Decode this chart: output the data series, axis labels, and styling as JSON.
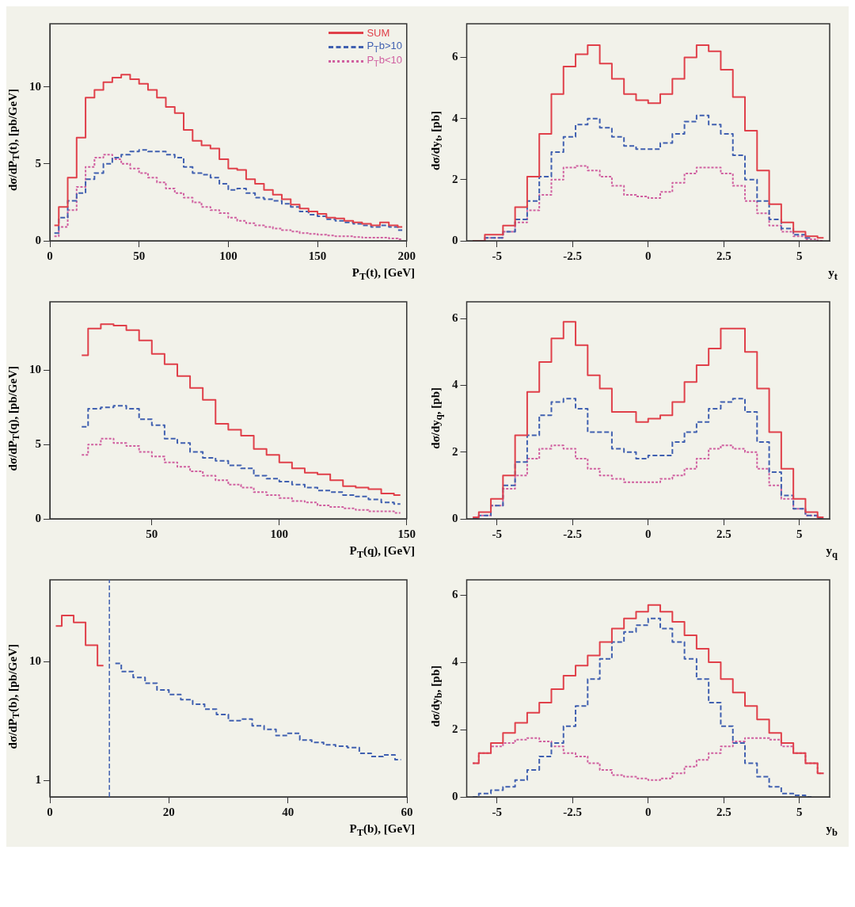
{
  "chart_data": [
    {
      "type": "step",
      "xlabel": "P$_{T}$(t), [GeV]",
      "ylabel": "dσ/dP$_{T}$(t), [pb/GeV]",
      "xlim": [
        0,
        200
      ],
      "ylim": [
        0,
        14.1
      ],
      "xticks": [
        0,
        50,
        100,
        150,
        200
      ],
      "yticks": [
        0,
        5,
        10
      ],
      "grid": false,
      "legend": "top right",
      "x": [
        2.5,
        7.5,
        12.5,
        17.5,
        22.5,
        27.5,
        32.5,
        37.5,
        42.5,
        47.5,
        52.5,
        57.5,
        62.5,
        67.5,
        72.5,
        77.5,
        82.5,
        87.5,
        92.5,
        97.5,
        102.5,
        107.5,
        112.5,
        117.5,
        122.5,
        127.5,
        132.5,
        137.5,
        142.5,
        147.5,
        152.5,
        157.5,
        162.5,
        167.5,
        172.5,
        177.5,
        182.5,
        187.5,
        192.5,
        197.5
      ],
      "series": [
        {
          "name": "SUM",
          "color": "#e0404a",
          "line_style": "solid",
          "values": [
            1.0,
            2.2,
            4.1,
            6.7,
            9.3,
            9.8,
            10.3,
            10.6,
            10.8,
            10.5,
            10.2,
            9.8,
            9.3,
            8.7,
            8.3,
            7.2,
            6.5,
            6.2,
            6.0,
            5.3,
            4.7,
            4.6,
            4.0,
            3.7,
            3.3,
            3.0,
            2.7,
            2.35,
            2.1,
            1.9,
            1.75,
            1.5,
            1.45,
            1.3,
            1.2,
            1.1,
            1.0,
            1.2,
            1.0,
            0.9
          ]
        },
        {
          "name": "P$_{T}$b>10",
          "color": "#4060b0",
          "line_style": "dashed",
          "values": [
            0.5,
            1.5,
            2.6,
            3.1,
            4.0,
            4.4,
            5.0,
            5.4,
            5.6,
            5.8,
            5.9,
            5.8,
            5.8,
            5.6,
            5.4,
            4.8,
            4.4,
            4.3,
            4.1,
            3.7,
            3.3,
            3.4,
            3.1,
            2.8,
            2.7,
            2.6,
            2.4,
            2.2,
            1.9,
            1.7,
            1.6,
            1.4,
            1.3,
            1.2,
            1.1,
            1.0,
            0.9,
            1.0,
            0.9,
            0.7
          ]
        },
        {
          "name": "P$_{T}$b<10",
          "color": "#d060a0",
          "line_style": "dotted",
          "values": [
            0.3,
            0.9,
            2.0,
            3.5,
            4.8,
            5.4,
            5.6,
            5.3,
            5.0,
            4.7,
            4.4,
            4.1,
            3.8,
            3.4,
            3.1,
            2.8,
            2.5,
            2.2,
            2.0,
            1.8,
            1.5,
            1.3,
            1.15,
            1.0,
            0.9,
            0.8,
            0.7,
            0.6,
            0.5,
            0.45,
            0.4,
            0.35,
            0.3,
            0.3,
            0.25,
            0.2,
            0.2,
            0.2,
            0.15,
            0.1
          ]
        }
      ]
    },
    {
      "type": "step",
      "xlabel": "y$_{t}$",
      "ylabel": "dσ/dy$_{t}$, [pb]",
      "xlim": [
        -6,
        6
      ],
      "ylim": [
        0,
        7.1
      ],
      "xticks": [
        -5,
        -2.5,
        0,
        2.5,
        5
      ],
      "yticks": [
        0,
        2,
        4,
        6
      ],
      "grid": false,
      "x": [
        -5.8,
        -5.0,
        -4.6,
        -4.2,
        -3.8,
        -3.4,
        -3.0,
        -2.6,
        -2.2,
        -1.8,
        -1.4,
        -1.0,
        -0.6,
        -0.2,
        0.2,
        0.6,
        1.0,
        1.4,
        1.8,
        2.2,
        2.6,
        3.0,
        3.4,
        3.8,
        4.2,
        4.6,
        5.0,
        5.4,
        5.8
      ],
      "series": [
        {
          "color": "#e0404a",
          "line_style": "solid",
          "values": [
            0,
            0.2,
            0.5,
            1.1,
            2.1,
            3.5,
            4.8,
            5.7,
            6.1,
            6.4,
            5.8,
            5.3,
            4.8,
            4.6,
            4.5,
            4.8,
            5.3,
            6.0,
            6.4,
            6.2,
            5.6,
            4.7,
            3.6,
            2.3,
            1.2,
            0.6,
            0.3,
            0.15,
            0.1
          ]
        },
        {
          "color": "#4060b0",
          "line_style": "dashed",
          "values": [
            0,
            0.1,
            0.3,
            0.7,
            1.3,
            2.1,
            2.9,
            3.4,
            3.8,
            4.0,
            3.7,
            3.4,
            3.1,
            3.0,
            3.0,
            3.2,
            3.5,
            3.9,
            4.1,
            3.8,
            3.5,
            2.8,
            2.0,
            1.3,
            0.7,
            0.4,
            0.2,
            0.1,
            null
          ]
        },
        {
          "color": "#d060a0",
          "line_style": "dotted",
          "values": [
            0,
            0.1,
            0.3,
            0.6,
            1.0,
            1.5,
            2.0,
            2.4,
            2.45,
            2.3,
            2.1,
            1.8,
            1.5,
            1.45,
            1.4,
            1.6,
            1.9,
            2.2,
            2.4,
            2.4,
            2.2,
            1.8,
            1.3,
            0.9,
            0.5,
            0.3,
            0.15,
            0.05,
            0
          ]
        }
      ]
    },
    {
      "type": "step",
      "xlabel": "P$_{T}$(q), [GeV]",
      "ylabel": "dσ/dP$_{T}$(q), [pb/GeV]",
      "xlim": [
        10,
        150
      ],
      "ylim": [
        0,
        14.6
      ],
      "xticks": [
        50,
        100,
        150
      ],
      "yticks": [
        0,
        5,
        10
      ],
      "grid": false,
      "x": [
        22.5,
        27.5,
        32.5,
        37.5,
        42.5,
        47.5,
        52.5,
        57.5,
        62.5,
        67.5,
        72.5,
        77.5,
        82.5,
        87.5,
        92.5,
        97.5,
        102.5,
        107.5,
        112.5,
        117.5,
        122.5,
        127.5,
        132.5,
        137.5,
        142.5,
        147.5
      ],
      "series": [
        {
          "color": "#e0404a",
          "line_style": "solid",
          "values": [
            11.0,
            12.8,
            13.1,
            13.0,
            12.7,
            12.0,
            11.1,
            10.4,
            9.6,
            8.8,
            8.0,
            6.4,
            6.0,
            5.6,
            4.7,
            4.3,
            3.8,
            3.4,
            3.1,
            3.0,
            2.6,
            2.2,
            2.1,
            2.0,
            1.7,
            1.6
          ]
        },
        {
          "color": "#4060b0",
          "line_style": "dashed",
          "values": [
            6.2,
            7.4,
            7.5,
            7.6,
            7.4,
            6.7,
            6.3,
            5.4,
            5.1,
            4.5,
            4.1,
            3.9,
            3.6,
            3.4,
            2.9,
            2.7,
            2.5,
            2.3,
            2.1,
            1.9,
            1.8,
            1.6,
            1.5,
            1.3,
            1.1,
            1.0
          ]
        },
        {
          "color": "#d060a0",
          "line_style": "dotted",
          "values": [
            4.3,
            5.0,
            5.4,
            5.1,
            4.9,
            4.5,
            4.2,
            3.8,
            3.5,
            3.2,
            2.9,
            2.6,
            2.3,
            2.1,
            1.8,
            1.6,
            1.4,
            1.2,
            1.1,
            0.9,
            0.8,
            0.7,
            0.6,
            0.5,
            0.5,
            0.4
          ]
        }
      ]
    },
    {
      "type": "step",
      "xlabel": "y$_{q}$",
      "ylabel": "dσ/dy$_{q}$, [pb]",
      "xlim": [
        -6,
        6
      ],
      "ylim": [
        0,
        6.5
      ],
      "xticks": [
        -5,
        -2.5,
        0,
        2.5,
        5
      ],
      "yticks": [
        0,
        2,
        4,
        6
      ],
      "grid": false,
      "x": [
        -5.8,
        -5.4,
        -5.0,
        -4.6,
        -4.2,
        -3.8,
        -3.4,
        -3.0,
        -2.6,
        -2.2,
        -1.8,
        -1.4,
        -1.0,
        -0.6,
        -0.2,
        0.2,
        0.6,
        1.0,
        1.4,
        1.8,
        2.2,
        2.6,
        3.0,
        3.4,
        3.8,
        4.2,
        4.6,
        5.0,
        5.4,
        5.8
      ],
      "series": [
        {
          "color": "#e0404a",
          "line_style": "solid",
          "values": [
            0.05,
            0.2,
            0.6,
            1.3,
            2.5,
            3.8,
            4.7,
            5.4,
            5.9,
            5.2,
            4.3,
            3.9,
            3.2,
            3.2,
            2.9,
            3.0,
            3.1,
            3.5,
            4.1,
            4.6,
            5.1,
            5.7,
            5.7,
            5.0,
            3.9,
            2.6,
            1.5,
            0.6,
            0.2,
            0.05
          ]
        },
        {
          "color": "#4060b0",
          "line_style": "dashed",
          "values": [
            0,
            0.1,
            0.4,
            1.0,
            1.7,
            2.5,
            3.1,
            3.5,
            3.6,
            3.3,
            2.6,
            2.6,
            2.1,
            2.0,
            1.8,
            1.9,
            1.9,
            2.3,
            2.6,
            2.9,
            3.3,
            3.5,
            3.6,
            3.2,
            2.3,
            1.4,
            0.7,
            0.3,
            0.1,
            0
          ]
        },
        {
          "color": "#d060a0",
          "line_style": "dotted",
          "values": [
            0,
            0.1,
            0.4,
            0.9,
            1.3,
            1.8,
            2.1,
            2.2,
            2.1,
            1.8,
            1.5,
            1.3,
            1.2,
            1.1,
            1.1,
            1.1,
            1.2,
            1.3,
            1.5,
            1.8,
            2.1,
            2.2,
            2.1,
            2.0,
            1.5,
            1.0,
            0.6,
            0.3,
            0.1,
            0
          ]
        }
      ]
    },
    {
      "type": "step",
      "xlabel": "P$_{T}$(b), [GeV]",
      "ylabel": "dσ/dP$_{T}$(b), [pb/GeV]",
      "log": "y",
      "xlim": [
        0,
        60
      ],
      "ylim": [
        0.73,
        49
      ],
      "xticks": [
        0,
        20,
        40,
        60
      ],
      "yticks": [
        1,
        10
      ],
      "grid": false,
      "ref_lines": [
        {
          "axis": "x",
          "value": 10,
          "color": "#4060b0",
          "line_style": "dashed"
        }
      ],
      "series": [
        {
          "color": "#e0404a",
          "line_style": "solid",
          "x": [
            1,
            3,
            5,
            7,
            9
          ],
          "values": [
            20,
            24.6,
            21.5,
            13.8,
            9.3
          ]
        },
        {
          "color": "#4060b0",
          "line_style": "dashed",
          "x": [
            11,
            13,
            15,
            17,
            19,
            21,
            23,
            25,
            27,
            29,
            31,
            33,
            35,
            37,
            39,
            41,
            43,
            45,
            47,
            49,
            51,
            53,
            55,
            57,
            59
          ],
          "values": [
            9.7,
            8.3,
            7.4,
            6.6,
            5.8,
            5.3,
            4.8,
            4.4,
            4.0,
            3.6,
            3.2,
            3.3,
            2.9,
            2.7,
            2.4,
            2.5,
            2.2,
            2.1,
            2.0,
            1.95,
            1.9,
            1.7,
            1.6,
            1.65,
            1.5
          ]
        }
      ]
    },
    {
      "type": "step",
      "xlabel": "y$_{b}$",
      "ylabel": "dσ/dy$_{b}$, [pb]",
      "xlim": [
        -6,
        6
      ],
      "ylim": [
        0,
        6.45
      ],
      "xticks": [
        -5,
        -2.5,
        0,
        2.5,
        5
      ],
      "yticks": [
        0,
        2,
        4,
        6
      ],
      "grid": false,
      "x": [
        -5.8,
        -5.4,
        -5.0,
        -4.6,
        -4.2,
        -3.8,
        -3.4,
        -3.0,
        -2.6,
        -2.2,
        -1.8,
        -1.4,
        -1.0,
        -0.6,
        -0.2,
        0.2,
        0.6,
        1.0,
        1.4,
        1.8,
        2.2,
        2.6,
        3.0,
        3.4,
        3.8,
        4.2,
        4.6,
        5.0,
        5.4,
        5.8
      ],
      "series": [
        {
          "color": "#e0404a",
          "line_style": "solid",
          "values": [
            1.0,
            1.3,
            1.6,
            1.9,
            2.2,
            2.5,
            2.8,
            3.2,
            3.6,
            3.9,
            4.2,
            4.6,
            5.0,
            5.3,
            5.5,
            5.7,
            5.5,
            5.2,
            4.8,
            4.4,
            4.0,
            3.5,
            3.1,
            2.7,
            2.3,
            1.9,
            1.6,
            1.3,
            1.0,
            0.7
          ]
        },
        {
          "color": "#4060b0",
          "line_style": "dashed",
          "values": [
            0,
            0.1,
            0.2,
            0.3,
            0.5,
            0.8,
            1.2,
            1.6,
            2.1,
            2.7,
            3.5,
            4.1,
            4.6,
            4.9,
            5.1,
            5.3,
            5.0,
            4.6,
            4.1,
            3.5,
            2.8,
            2.1,
            1.6,
            1.0,
            0.6,
            0.3,
            0.1,
            0.05,
            0,
            null
          ]
        },
        {
          "color": "#d060a0",
          "line_style": "dotted",
          "values": [
            1.0,
            1.3,
            1.5,
            1.6,
            1.7,
            1.75,
            1.65,
            1.5,
            1.3,
            1.2,
            1.0,
            0.8,
            0.65,
            0.6,
            0.55,
            0.5,
            0.55,
            0.7,
            0.9,
            1.1,
            1.3,
            1.5,
            1.65,
            1.75,
            1.75,
            1.7,
            1.5,
            1.3,
            1.0,
            0.7
          ]
        }
      ]
    }
  ]
}
